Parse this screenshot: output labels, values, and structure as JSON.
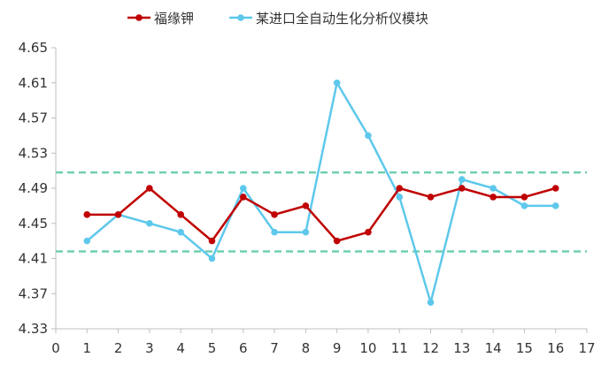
{
  "chart_data": {
    "type": "line",
    "title": "",
    "xlabel": "",
    "ylabel": "",
    "x": [
      1,
      2,
      3,
      4,
      5,
      6,
      7,
      8,
      9,
      10,
      11,
      12,
      13,
      14,
      15,
      16
    ],
    "xlim": [
      0,
      17
    ],
    "ylim": [
      4.33,
      4.65
    ],
    "x_ticks": [
      "0",
      "1",
      "2",
      "3",
      "4",
      "5",
      "6",
      "7",
      "8",
      "9",
      "10",
      "11",
      "12",
      "13",
      "14",
      "15",
      "16",
      "17"
    ],
    "y_ticks": [
      "4.33",
      "4.37",
      "4.41",
      "4.45",
      "4.49",
      "4.53",
      "4.57",
      "4.61",
      "4.65"
    ],
    "grid": false,
    "legend_position": "top",
    "series": [
      {
        "name": "福缘钾",
        "color": "#c00000",
        "values": [
          4.46,
          4.46,
          4.49,
          4.46,
          4.43,
          4.48,
          4.46,
          4.47,
          4.43,
          4.44,
          4.49,
          4.48,
          4.49,
          4.48,
          4.48,
          4.49
        ]
      },
      {
        "name": "某进口全自动生化分析仪模块",
        "color": "#5ec8ec",
        "values": [
          4.43,
          4.46,
          4.45,
          4.44,
          4.41,
          4.49,
          4.44,
          4.44,
          4.61,
          4.55,
          4.48,
          4.36,
          4.5,
          4.49,
          4.47,
          4.47
        ]
      }
    ],
    "reference_lines": [
      {
        "y": 4.508,
        "color": "#6fcfb0",
        "style": "dashed"
      },
      {
        "y": 4.418,
        "color": "#6fcfb0",
        "style": "dashed"
      }
    ]
  }
}
